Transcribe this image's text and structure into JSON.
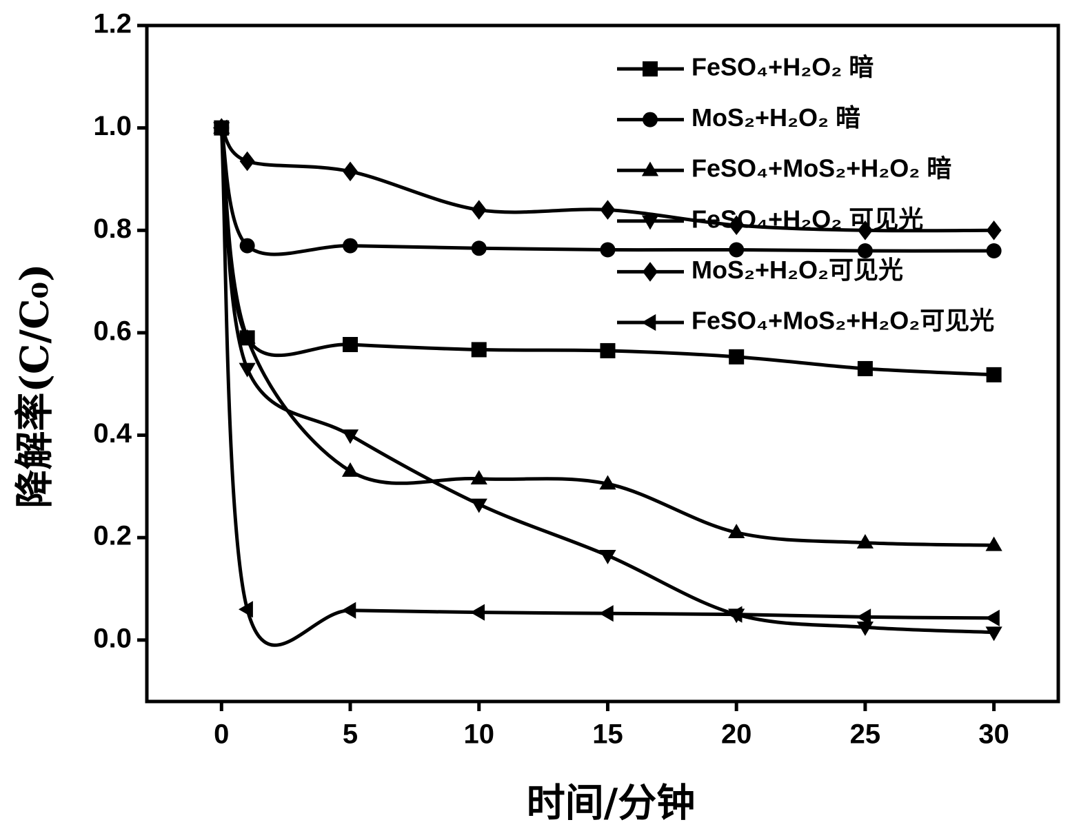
{
  "chart_data": {
    "type": "line",
    "x_label": "时间/分钟",
    "y_label": "降解率(C/C₀)",
    "x": [
      0,
      1,
      5,
      10,
      15,
      20,
      25,
      30
    ],
    "xlim": [
      -2.9,
      32.5
    ],
    "ylim": [
      -0.12,
      1.2
    ],
    "xticks": [
      0,
      5,
      10,
      15,
      20,
      25,
      30
    ],
    "yticks": [
      {
        "value": 0,
        "label": "0.0"
      },
      0.2,
      0.4,
      0.6,
      0.8,
      {
        "value": 1,
        "label": "1.0"
      },
      1.2
    ],
    "legend": "upper right",
    "series": [
      {
        "name": "FeSO₄+H₂O₂ 暗",
        "color": "#000000",
        "marker": "square",
        "values": [
          1.0,
          0.59,
          0.577,
          0.567,
          0.565,
          0.553,
          0.53,
          0.518
        ]
      },
      {
        "name": "MoS₂+H₂O₂ 暗",
        "color": "#000000",
        "marker": "circle",
        "values": [
          1.0,
          0.77,
          0.77,
          0.765,
          0.762,
          0.762,
          0.76,
          0.76
        ]
      },
      {
        "name": "FeSO₄+MoS₂+H₂O₂ 暗",
        "color": "#000000",
        "marker": "triangle-up",
        "values": [
          1.0,
          0.59,
          0.33,
          0.315,
          0.305,
          0.21,
          0.19,
          0.185
        ]
      },
      {
        "name": "FeSO₄+H₂O₂ 可见光",
        "color": "#000000",
        "marker": "triangle-down",
        "values": [
          1.0,
          0.53,
          0.4,
          0.265,
          0.165,
          0.05,
          0.025,
          0.015
        ]
      },
      {
        "name": "MoS₂+H₂O₂可见光",
        "color": "#000000",
        "marker": "diamond",
        "values": [
          1.0,
          0.935,
          0.915,
          0.84,
          0.84,
          0.81,
          0.8,
          0.8
        ]
      },
      {
        "name": "FeSO₄+MoS₂+H₂O₂可见光",
        "color": "#000000",
        "marker": "triangle-left",
        "values": [
          1.0,
          0.06,
          0.058,
          0.054,
          0.052,
          0.05,
          0.045,
          0.043
        ]
      }
    ]
  }
}
